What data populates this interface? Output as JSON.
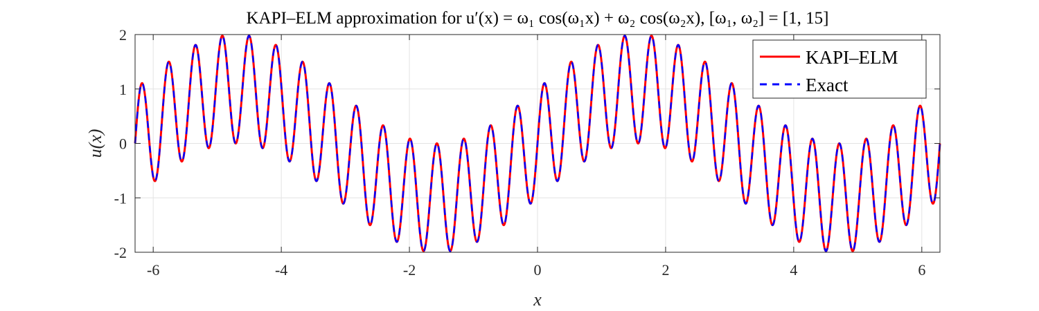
{
  "chart_data": {
    "type": "line",
    "title": "KAPI–ELM approximation for u′(x) = ω₁ cos(ω₁x) + ω₂ cos(ω₂x), [ω₁, ω₂] = [1, 15]",
    "xlabel": "x",
    "ylabel": "u(x)",
    "xlim": [
      -6.2832,
      6.2832
    ],
    "ylim": [
      -2,
      2
    ],
    "grid": true,
    "legend_position": "top-right",
    "xticks": [
      -6,
      -4,
      -2,
      0,
      2,
      4,
      6
    ],
    "xtick_labels": [
      "-6",
      "-4",
      "-2",
      "0",
      "2",
      "4",
      "6"
    ],
    "yticks": [
      -2,
      -1,
      0,
      1,
      2
    ],
    "ytick_labels": [
      "-2",
      "-1",
      "0",
      "1",
      "2"
    ],
    "parameters": {
      "omega1": 1,
      "omega2": 15
    },
    "series": [
      {
        "name": "KAPI–ELM",
        "color": "#ff0000",
        "style": "solid",
        "function": "sin(1*x) + sin(15*x)"
      },
      {
        "name": "Exact",
        "color": "#0000ff",
        "style": "dashed",
        "function": "sin(1*x) + sin(15*x)"
      }
    ]
  }
}
